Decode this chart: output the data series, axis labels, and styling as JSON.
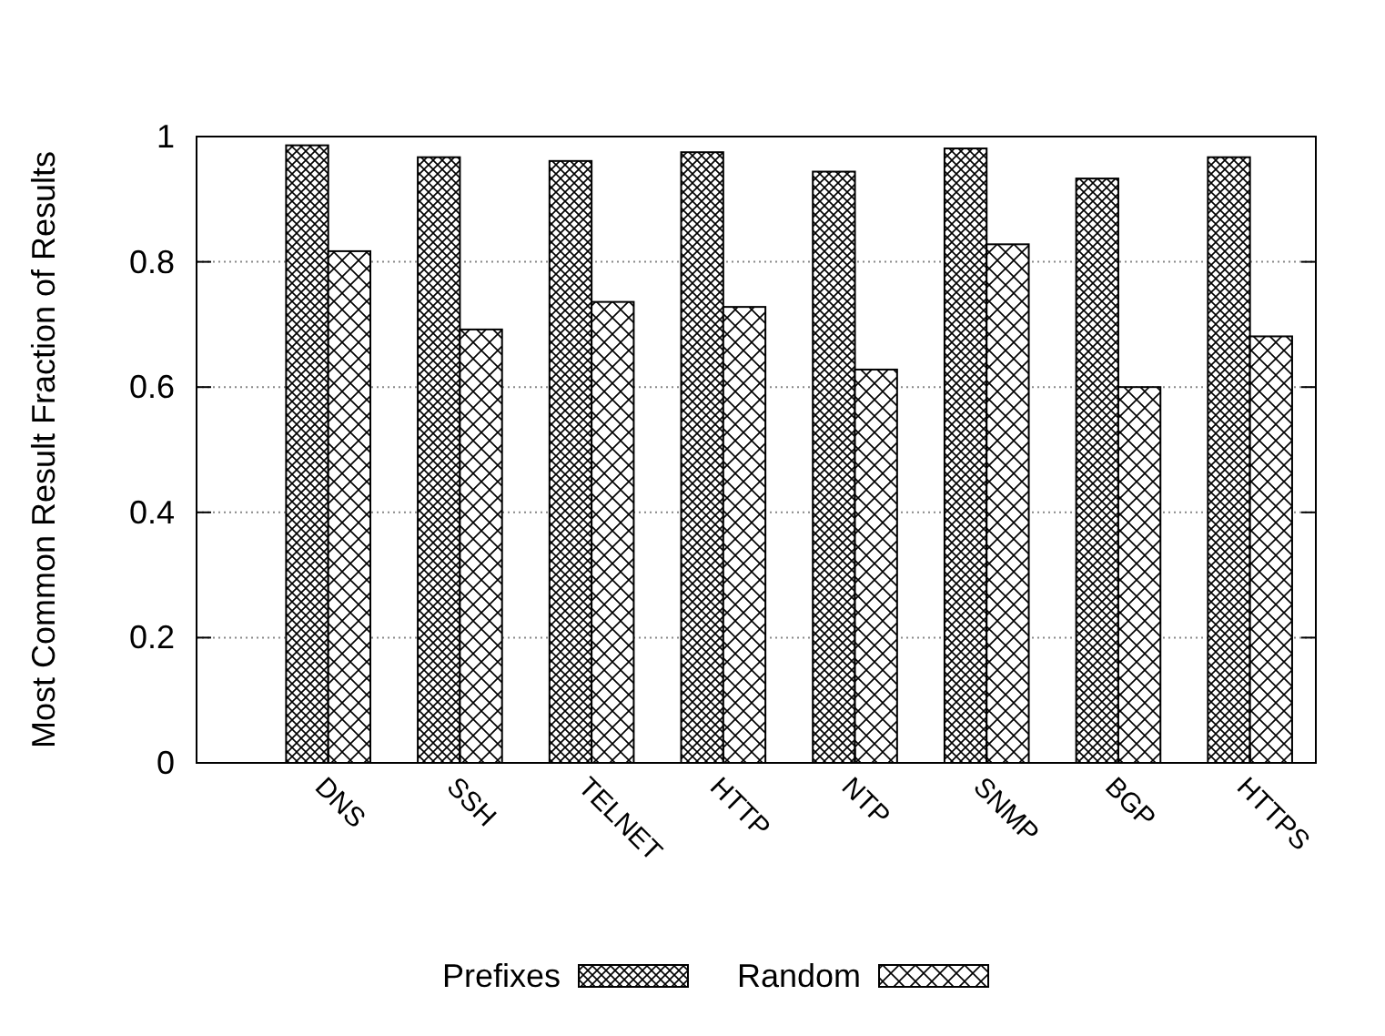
{
  "chart_data": {
    "type": "bar",
    "ylabel": "Most Common Result Fraction of Results",
    "categories": [
      "DNS",
      "SSH",
      "TELNET",
      "HTTP",
      "NTP",
      "SNMP",
      "BGP",
      "HTTPS"
    ],
    "series": [
      {
        "name": "Prefixes",
        "color": "#000000",
        "values": [
          0.986,
          0.967,
          0.961,
          0.975,
          0.944,
          0.981,
          0.933,
          0.967
        ]
      },
      {
        "name": "Random",
        "color": "#000000",
        "values": [
          0.817,
          0.692,
          0.736,
          0.728,
          0.628,
          0.828,
          0.6,
          0.681
        ]
      }
    ],
    "ylim": [
      0,
      1
    ],
    "yticks": [
      0,
      0.2,
      0.4,
      0.6,
      0.8,
      1
    ],
    "grid": "y",
    "legend": "bottom"
  }
}
